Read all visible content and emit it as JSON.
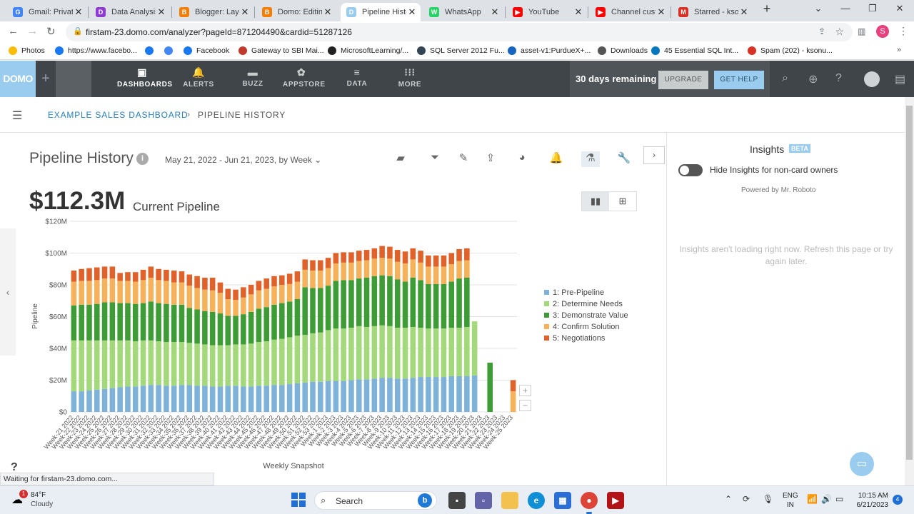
{
  "browser": {
    "tabs": [
      {
        "label": "Gmail: Private",
        "icon": "google-icon",
        "color": "#4285f4",
        "glyph": "G"
      },
      {
        "label": "Data Analysis",
        "icon": "purple-app-icon",
        "color": "#8e3bd1",
        "glyph": "D"
      },
      {
        "label": "Blogger: Layo",
        "icon": "blogger-icon",
        "color": "#f57d00",
        "glyph": "B"
      },
      {
        "label": "Domo: Editing",
        "icon": "blogger-icon",
        "color": "#f57d00",
        "glyph": "B"
      },
      {
        "label": "Pipeline Histo",
        "icon": "domo-icon",
        "color": "#99ccee",
        "glyph": "D"
      },
      {
        "label": "WhatsApp",
        "icon": "whatsapp-icon",
        "color": "#25d366",
        "glyph": "W"
      },
      {
        "label": "YouTube",
        "icon": "youtube-icon",
        "color": "#ff0000",
        "glyph": "▶"
      },
      {
        "label": "Channel custo",
        "icon": "youtube-icon",
        "color": "#ff0000",
        "glyph": "▶"
      },
      {
        "label": "Starred - kson",
        "icon": "gmail-icon",
        "color": "#d93025",
        "glyph": "M"
      }
    ],
    "url": "firstam-23.domo.com/analyzer?pageId=871204490&cardid=51287126",
    "profile_initial": "S",
    "bookmarks": [
      {
        "label": "Photos",
        "color": "#fbbc04"
      },
      {
        "label": "https://www.facebo...",
        "color": "#1877f2"
      },
      {
        "label": "",
        "color": "#1877f2"
      },
      {
        "label": "",
        "color": "#4285f4"
      },
      {
        "label": "Facebook",
        "color": "#1877f2"
      },
      {
        "label": "Gateway to SBI Mai...",
        "color": "#c0392b"
      },
      {
        "label": "MicrosoftLearning/...",
        "color": "#222222"
      },
      {
        "label": "SQL Server 2012 Fu...",
        "color": "#334455"
      },
      {
        "label": "asset-v1:PurdueX+...",
        "color": "#1565c0"
      },
      {
        "label": "Downloads",
        "color": "#555555"
      },
      {
        "label": "45 Essential SQL Int...",
        "color": "#0277bd"
      },
      {
        "label": "Spam (202) - ksonu...",
        "color": "#d93025"
      }
    ],
    "status_text": "Waiting for firstam-23.domo.com..."
  },
  "domo": {
    "logo": "DOMO",
    "nav": [
      {
        "label": "DASHBOARDS",
        "icon": "dashboards-icon",
        "glyph": "▣"
      },
      {
        "label": "ALERTS",
        "icon": "bell-icon",
        "glyph": "🔔"
      },
      {
        "label": "BUZZ",
        "icon": "chat-icon",
        "glyph": "▬"
      },
      {
        "label": "APPSTORE",
        "icon": "appstore-icon",
        "glyph": "✿"
      },
      {
        "label": "DATA",
        "icon": "database-icon",
        "glyph": "≡"
      },
      {
        "label": "MORE",
        "icon": "grid-icon",
        "glyph": "⁝⁝⁝"
      }
    ],
    "trial_text": "30 days remaining",
    "upgrade_label": "UPGRADE",
    "help_label": "GET HELP"
  },
  "breadcrumb": {
    "parent": "EXAMPLE SALES DASHBOARD",
    "current": "PIPELINE HISTORY"
  },
  "card": {
    "title": "Pipeline History",
    "date_range": "May 21, 2022 - Jun 21, 2023, by Week",
    "summary_value": "$112.3M",
    "summary_label": "Current Pipeline"
  },
  "insights": {
    "title": "Insights",
    "badge": "BETA",
    "toggle_label": "Hide Insights for non-card owners",
    "powered_by": "Powered by Mr. Roboto",
    "message": "Insights aren't loading right now. Refresh this page or try again later."
  },
  "chart_data": {
    "type": "bar",
    "stacked": true,
    "xlabel": "Weekly Snapshot",
    "ylabel": "Pipeline",
    "ylim": [
      0,
      120
    ],
    "yticks": [
      "$0",
      "$20M",
      "$40M",
      "$60M",
      "$80M",
      "$100M",
      "$120M"
    ],
    "legend_position": "right",
    "categories": [
      "Week-21 2022",
      "Week-22 2022",
      "Week-23 2022",
      "Week-24 2022",
      "Week-25 2022",
      "Week-26 2022",
      "Week-27 2022",
      "Week-28 2022",
      "Week-29 2022",
      "Week-30 2022",
      "Week-31 2022",
      "Week-32 2022",
      "Week-33 2022",
      "Week-34 2022",
      "Week-35 2022",
      "Week-36 2022",
      "Week-37 2022",
      "Week-38 2022",
      "Week-39 2022",
      "Week-40 2022",
      "Week-41 2022",
      "Week-42 2022",
      "Week-43 2022",
      "Week-44 2022",
      "Week-45 2022",
      "Week-46 2022",
      "Week-47 2022",
      "Week-48 2022",
      "Week-49 2022",
      "Week-50 2022",
      "Week-51 2022",
      "Week-52 2022",
      "Week-53 2022",
      "Week-1 2023",
      "Week-2 2023",
      "Week-3 2023",
      "Week-4 2023",
      "Week-5 2023",
      "Week-6 2023",
      "Week-7 2023",
      "Week-8 2023",
      "Week-9 2023",
      "Week-10 2023",
      "Week-11 2023",
      "Week-12 2023",
      "Week-13 2023",
      "Week-14 2023",
      "Week-15 2023",
      "Week-16 2023",
      "Week-17 2023",
      "Week-18 2023",
      "Week-19 2023",
      "Week-20 2023",
      "Week-21 2023",
      "Week-22 2023",
      "Week-23 2023",
      "Week-24 2023",
      "Week-25 2023"
    ],
    "series": [
      {
        "name": "1: Pre-Pipeline",
        "color": "#7fb2d9",
        "values": [
          13,
          13,
          13.5,
          14,
          14.5,
          15,
          15.5,
          16,
          16,
          16.5,
          17,
          17,
          16.5,
          16.5,
          17,
          17,
          16.5,
          16.5,
          16,
          16,
          16.5,
          16.5,
          16,
          16,
          16.5,
          16.5,
          17,
          17,
          17.5,
          18,
          18.5,
          19,
          19,
          19.5,
          19.5,
          19.5,
          20,
          20.5,
          20.5,
          21,
          21.5,
          21.5,
          21,
          21,
          21.5,
          22,
          22,
          22,
          22,
          22.5,
          22.5,
          22.5,
          23,
          0,
          0,
          0,
          0,
          0
        ]
      },
      {
        "name": "2: Determine Needs",
        "color": "#a3d97a",
        "values": [
          32,
          32,
          31.5,
          31,
          30.5,
          30,
          29.5,
          29,
          28.5,
          28.5,
          28,
          27.5,
          27.5,
          27.5,
          27,
          26.5,
          26.5,
          26,
          26,
          26,
          25.5,
          26,
          26.5,
          27,
          27.5,
          28,
          28.5,
          29,
          29.5,
          30,
          30,
          30.5,
          31,
          32,
          33,
          33,
          33,
          33.5,
          33,
          33,
          33,
          32.5,
          32,
          32,
          32,
          31,
          30.5,
          30.5,
          30.5,
          30.5,
          30.5,
          31,
          34,
          0,
          0,
          0,
          0,
          0
        ]
      },
      {
        "name": "3: Demonstrate Value",
        "color": "#3d9c35",
        "values": [
          22,
          22.5,
          22.5,
          23,
          24,
          24,
          23.5,
          23.5,
          23.5,
          23.5,
          24.5,
          24,
          24,
          23.5,
          23.5,
          22,
          21.5,
          21,
          21,
          20,
          18.5,
          18,
          19,
          20,
          21,
          21.5,
          22,
          22.5,
          22.5,
          23,
          30,
          28.5,
          28,
          28,
          30,
          30.5,
          30,
          30,
          31,
          31.5,
          31.5,
          31.5,
          30.5,
          29,
          31,
          30,
          28,
          28,
          28,
          29,
          31,
          31,
          0,
          0,
          31,
          0,
          0,
          0
        ]
      },
      {
        "name": "4: Confirm Solution",
        "color": "#f5b25a",
        "values": [
          15,
          15,
          15,
          15,
          15,
          15,
          14,
          14,
          14,
          14.5,
          15,
          14.5,
          14.5,
          14,
          14,
          14,
          13.5,
          13.5,
          13.5,
          13,
          10.5,
          10,
          10.5,
          11,
          11.5,
          11.5,
          11.5,
          11.5,
          11,
          11,
          11,
          11,
          11,
          11,
          11,
          11,
          11,
          11,
          11,
          11,
          11,
          11,
          11,
          11.5,
          11.5,
          11,
          11,
          11,
          11,
          11,
          11,
          11,
          0,
          0,
          0,
          0,
          0,
          13
        ]
      },
      {
        "name": "5: Negotiations",
        "color": "#e0622a",
        "values": [
          7,
          7.5,
          8,
          8,
          7.5,
          7.5,
          5,
          5.5,
          6,
          6.5,
          7,
          7,
          7,
          7.5,
          7,
          7,
          7.5,
          7.5,
          8,
          6.5,
          6.5,
          6.5,
          6.5,
          6,
          6,
          6.5,
          6.5,
          6,
          6.5,
          6.5,
          6.5,
          6.5,
          6.5,
          6.5,
          6.5,
          6.5,
          6.5,
          6.5,
          6.5,
          6.5,
          7.5,
          7.5,
          7.5,
          7.5,
          7,
          7.5,
          7,
          7,
          7,
          7,
          7.5,
          7.5,
          0,
          0,
          0,
          0,
          0,
          7
        ]
      }
    ]
  },
  "taskbar": {
    "temp": "84°F",
    "condition": "Cloudy",
    "weather_badge": "1",
    "search_label": "Search",
    "lang_top": "ENG",
    "lang_bottom": "IN",
    "time": "10:15 AM",
    "date": "6/21/2023",
    "notif_count": "4"
  }
}
